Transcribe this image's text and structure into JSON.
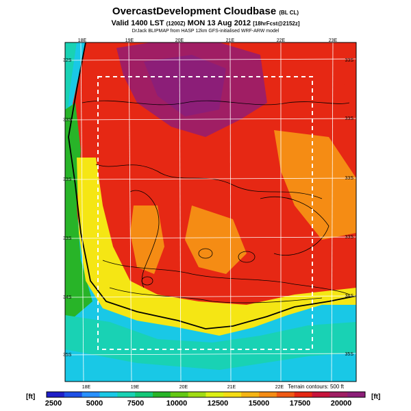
{
  "title": {
    "main": "OvercastDevelopment Cloudbase",
    "main_suffix": "(BL CL)",
    "valid_line": "Valid 1400 LST",
    "valid_utc": "(1200Z)",
    "valid_date": "MON 13 Aug 2012",
    "forecast_tag": "[18hrFcst@2152z]",
    "credit": "DrJack BLIPMAP from HASP 12km GFS-initialised WRF-ARW model"
  },
  "axes": {
    "top_lon": [
      "18E",
      "19E",
      "20E",
      "21E",
      "22E",
      "23E"
    ],
    "bottom_lon": [
      "18E",
      "19E",
      "20E",
      "21E",
      "22E"
    ],
    "left_lat": [
      "32S",
      "33S",
      "33S",
      "33S",
      "34S",
      "35S"
    ],
    "right_lat": [
      "33S",
      "33S",
      "33S",
      "33S",
      "34S",
      "35S"
    ]
  },
  "terrain_note": "Terrain contours: 500 ft",
  "colorbar": {
    "unit_left": "[ft]",
    "unit_right": "[ft]",
    "ticks": [
      "2500",
      "5000",
      "7500",
      "10000",
      "12500",
      "15000",
      "17500",
      "20000"
    ],
    "colors": [
      "#1e1ec8",
      "#1e50e6",
      "#2890ff",
      "#19c8e6",
      "#19d2b4",
      "#14c878",
      "#28b428",
      "#64c814",
      "#a0dc14",
      "#dcf014",
      "#f5dc14",
      "#f5b414",
      "#f58c14",
      "#f05a14",
      "#e62814",
      "#c8143c",
      "#a01e64",
      "#8c1e78"
    ]
  },
  "map_colors": {
    "sea_blue": "#19c8e6",
    "teal": "#19d2b4",
    "green": "#28b428",
    "yellow": "#f5e614",
    "orange": "#f58c14",
    "red": "#e62814",
    "magenta": "#a01e64"
  }
}
